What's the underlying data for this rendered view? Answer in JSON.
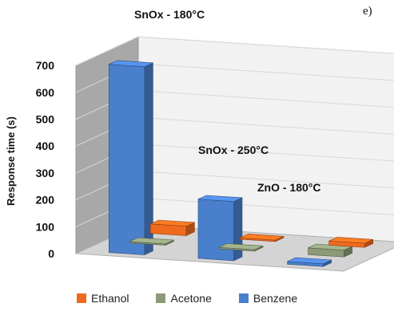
{
  "chart_data": {
    "type": "bar",
    "panel_label": "e)",
    "ylabel": "Response time (s)",
    "y_ticks": [
      0,
      100,
      200,
      300,
      400,
      500,
      600,
      700
    ],
    "ylim": [
      0,
      700
    ],
    "grid": true,
    "legend_position": "bottom",
    "categories": [
      "SnOx - 180°C",
      "SnOx - 250°C",
      "ZnO - 180°C"
    ],
    "series": [
      {
        "name": "Ethanol",
        "color": "#f06a1e",
        "values": [
          35,
          5,
          15
        ]
      },
      {
        "name": "Acetone",
        "color": "#8c9a78",
        "values": [
          5,
          5,
          25
        ]
      },
      {
        "name": "Benzene",
        "color": "#4a7fcc",
        "values": [
          700,
          220,
          10
        ]
      }
    ]
  }
}
